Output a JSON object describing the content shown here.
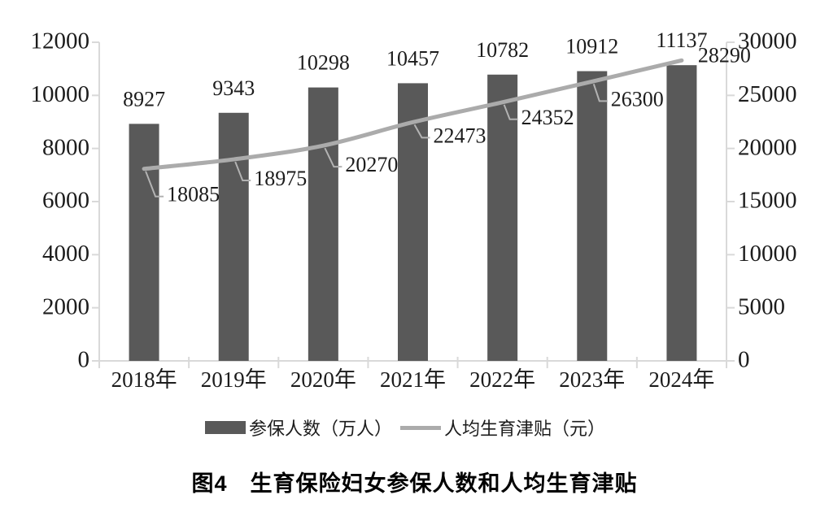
{
  "figure": {
    "caption": "图4　生育保险妇女参保人数和人均生育津贴"
  },
  "legend": {
    "bar_label": "参保人数（万人）",
    "line_label": "人均生育津贴（元）"
  },
  "colors": {
    "bar": "#595959",
    "line": "#ababab",
    "leader": "#b3b3b3",
    "axis": "#d9d9d9",
    "text": "#1c1c1c"
  },
  "chart_data": {
    "type": "bar+line",
    "title": "图4　生育保险妇女参保人数和人均生育津贴",
    "categories": [
      "2018年",
      "2019年",
      "2020年",
      "2021年",
      "2022年",
      "2023年",
      "2024年"
    ],
    "series": [
      {
        "name": "参保人数（万人）",
        "type": "bar",
        "axis": "left",
        "values": [
          8927,
          9343,
          10298,
          10457,
          10782,
          10912,
          11137
        ]
      },
      {
        "name": "人均生育津贴（元）",
        "type": "line",
        "axis": "right",
        "values": [
          18085,
          18975,
          20270,
          22473,
          24352,
          26300,
          28290
        ]
      }
    ],
    "left_axis": {
      "min": 0,
      "max": 12000,
      "step": 2000
    },
    "right_axis": {
      "min": 0,
      "max": 30000,
      "step": 5000
    },
    "grid": false,
    "legend_position": "bottom",
    "data_labels": true
  }
}
